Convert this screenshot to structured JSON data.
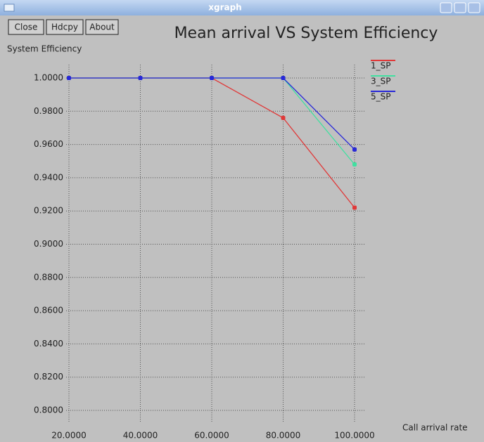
{
  "window": {
    "title": "xgraph",
    "buttons": [
      "Close",
      "Hdcpy",
      "About"
    ]
  },
  "chart_data": {
    "type": "line",
    "title": "Mean arrival VS System Efficiency",
    "y_label": "System Efficiency",
    "x_label": "Call arrival rate",
    "x": [
      20,
      40,
      60,
      80,
      100
    ],
    "series": [
      {
        "name": "1_SP",
        "color": "#e03838",
        "values": [
          1.0,
          1.0,
          1.0,
          0.976,
          0.922
        ]
      },
      {
        "name": "3_SP",
        "color": "#40e0a0",
        "values": [
          1.0,
          1.0,
          1.0,
          1.0,
          0.948
        ]
      },
      {
        "name": "5_SP",
        "color": "#2828d8",
        "values": [
          1.0,
          1.0,
          1.0,
          1.0,
          0.957
        ]
      }
    ],
    "xlim": [
      20,
      100
    ],
    "xticks": [
      {
        "value": 20,
        "label": "20.0000"
      },
      {
        "value": 40,
        "label": "40.0000"
      },
      {
        "value": 60,
        "label": "60.0000"
      },
      {
        "value": 80,
        "label": "80.0000"
      },
      {
        "value": 100,
        "label": "100.0000"
      }
    ],
    "ylim": [
      0.8,
      1.0
    ],
    "yticks": [
      {
        "value": 0.8,
        "label": "0.8000"
      },
      {
        "value": 0.82,
        "label": "0.8200"
      },
      {
        "value": 0.84,
        "label": "0.8400"
      },
      {
        "value": 0.86,
        "label": "0.8600"
      },
      {
        "value": 0.88,
        "label": "0.8800"
      },
      {
        "value": 0.9,
        "label": "0.9000"
      },
      {
        "value": 0.92,
        "label": "0.9200"
      },
      {
        "value": 0.94,
        "label": "0.9400"
      },
      {
        "value": 0.96,
        "label": "0.9600"
      },
      {
        "value": 0.98,
        "label": "0.9800"
      },
      {
        "value": 1.0,
        "label": "1.0000"
      }
    ],
    "grid": true,
    "legend": "right"
  }
}
